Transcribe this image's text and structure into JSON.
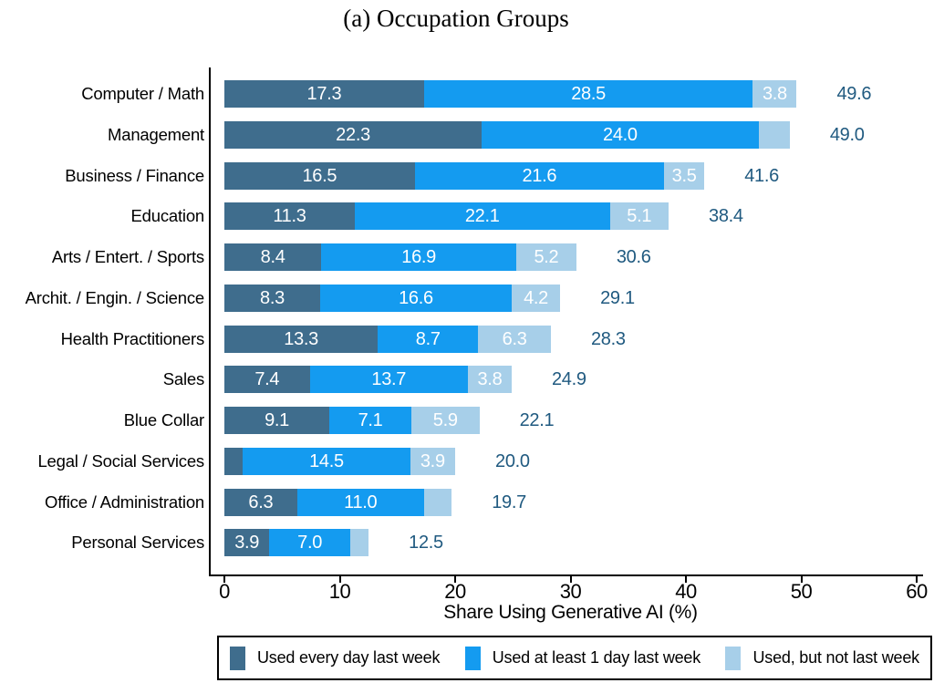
{
  "title": "(a) Occupation Groups",
  "chart_data": {
    "type": "bar",
    "orientation": "horizontal",
    "stacked": true,
    "title": "(a) Occupation Groups",
    "xlabel": "Share Using Generative AI (%)",
    "xlim": [
      0,
      60
    ],
    "xticks": [
      0,
      10,
      20,
      30,
      40,
      50,
      60
    ],
    "grid": false,
    "legend_position": "bottom",
    "series_names": [
      "Used every day last week",
      "Used at least 1 day last week",
      "Used, but not last week"
    ],
    "series_colors": [
      "#3F6D8D",
      "#149BF0",
      "#A7CFE9"
    ],
    "total_label_color": "#205A80",
    "rows": [
      {
        "category": "Computer / Math",
        "values": [
          17.3,
          28.5,
          3.8
        ],
        "segment_labels": [
          "17.3",
          "28.5",
          "3.8"
        ],
        "total_label": "49.6"
      },
      {
        "category": "Management",
        "values": [
          22.3,
          24.0,
          2.7
        ],
        "segment_labels": [
          "22.3",
          "24.0",
          ""
        ],
        "total_label": "49.0"
      },
      {
        "category": "Business / Finance",
        "values": [
          16.5,
          21.6,
          3.5
        ],
        "segment_labels": [
          "16.5",
          "21.6",
          "3.5"
        ],
        "total_label": "41.6"
      },
      {
        "category": "Education",
        "values": [
          11.3,
          22.1,
          5.1
        ],
        "segment_labels": [
          "11.3",
          "22.1",
          "5.1"
        ],
        "total_label": "38.4"
      },
      {
        "category": "Arts / Entert. / Sports",
        "values": [
          8.4,
          16.9,
          5.2
        ],
        "segment_labels": [
          "8.4",
          "16.9",
          "5.2"
        ],
        "total_label": "30.6"
      },
      {
        "category": "Archit. / Engin. / Science",
        "values": [
          8.3,
          16.6,
          4.2
        ],
        "segment_labels": [
          "8.3",
          "16.6",
          "4.2"
        ],
        "total_label": "29.1"
      },
      {
        "category": "Health Practitioners",
        "values": [
          13.3,
          8.7,
          6.3
        ],
        "segment_labels": [
          "13.3",
          "8.7",
          "6.3"
        ],
        "total_label": "28.3"
      },
      {
        "category": "Sales",
        "values": [
          7.4,
          13.7,
          3.8
        ],
        "segment_labels": [
          "7.4",
          "13.7",
          "3.8"
        ],
        "total_label": "24.9"
      },
      {
        "category": "Blue Collar",
        "values": [
          9.1,
          7.1,
          5.9
        ],
        "segment_labels": [
          "9.1",
          "7.1",
          "5.9"
        ],
        "total_label": "22.1"
      },
      {
        "category": "Legal / Social Services",
        "values": [
          1.6,
          14.5,
          3.9
        ],
        "segment_labels": [
          "",
          "14.5",
          "3.9"
        ],
        "total_label": "20.0"
      },
      {
        "category": "Office / Administration",
        "values": [
          6.3,
          11.0,
          2.4
        ],
        "segment_labels": [
          "6.3",
          "11.0",
          ""
        ],
        "total_label": "19.7"
      },
      {
        "category": "Personal Services",
        "values": [
          3.9,
          7.0,
          1.6
        ],
        "segment_labels": [
          "3.9",
          "7.0",
          ""
        ],
        "total_label": "12.5"
      }
    ]
  }
}
